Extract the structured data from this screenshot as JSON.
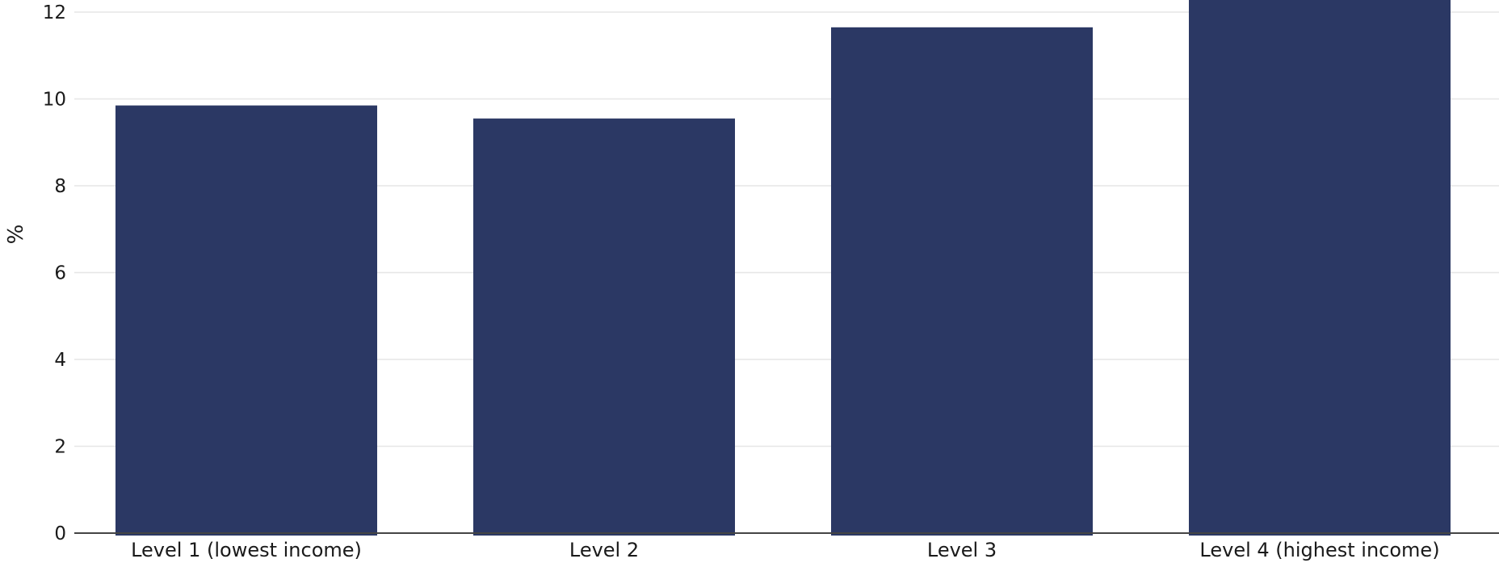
{
  "chart_data": {
    "type": "bar",
    "categories": [
      "Level 1 (lowest income)",
      "Level 2",
      "Level 3",
      "Level 4 (highest income)"
    ],
    "values": [
      9.85,
      9.55,
      11.65,
      12.6
    ],
    "title": "",
    "xlabel": "",
    "ylabel": "%",
    "ylim": [
      0,
      12.3
    ],
    "yticks": [
      0,
      2,
      4,
      6,
      8,
      10,
      12
    ],
    "grid": true,
    "bar_color": "#2b3864"
  }
}
